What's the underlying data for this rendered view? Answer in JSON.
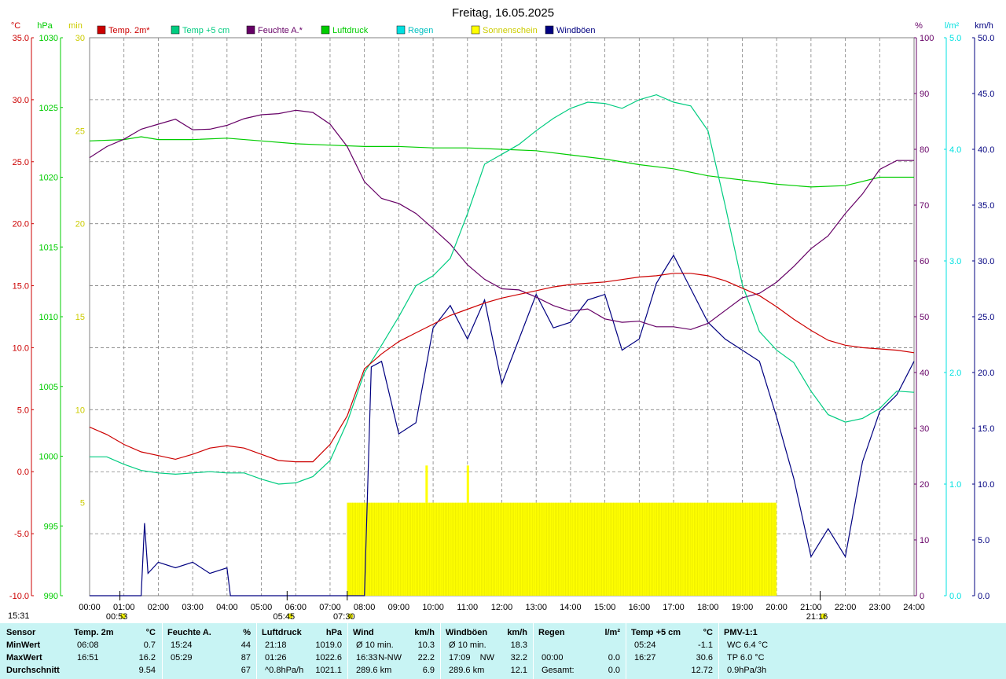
{
  "title": "Freitag, 16.05.2025",
  "colors": {
    "temp2m": "#cc0000",
    "temp5cm": "#00cc80",
    "feuchte": "#660066",
    "luftdruck": "#00cc00",
    "regen": "#00e0e0",
    "sonnenschein": "#ffff00",
    "windboeen": "#000080",
    "grid": "#808080",
    "stats_bg": "#c8f4f4"
  },
  "axis_units": {
    "celsius": "°C",
    "hpa": "hPa",
    "min": "min",
    "percent": "%",
    "lm2": "l/m²",
    "kmh": "km/h"
  },
  "legend": [
    {
      "label": "Temp. 2m*",
      "color": "#cc0000"
    },
    {
      "label": "Temp +5 cm",
      "color": "#00cc80"
    },
    {
      "label": "Feuchte A.*",
      "color": "#660066"
    },
    {
      "label": "Luftdruck",
      "color": "#00cc00"
    },
    {
      "label": "Regen",
      "color": "#00e0e0"
    },
    {
      "label": "Sonnenschein",
      "color": "#ffff00"
    },
    {
      "label": "Windböen",
      "color": "#000080"
    }
  ],
  "chart_data": {
    "type": "line",
    "title": "Freitag, 16.05.2025",
    "x_ticks": [
      "00:00",
      "01:00",
      "02:00",
      "03:00",
      "04:00",
      "05:00",
      "06:00",
      "07:00",
      "08:00",
      "09:00",
      "10:00",
      "11:00",
      "12:00",
      "13:00",
      "14:00",
      "15:00",
      "16:00",
      "17:00",
      "18:00",
      "19:00",
      "20:00",
      "21:00",
      "22:00",
      "23:00",
      "24:00"
    ],
    "axes": {
      "temperature": {
        "unit": "°C",
        "range": [
          -10,
          35
        ],
        "ticks": [
          "35.0",
          "30.0",
          "25.0",
          "20.0",
          "15.0",
          "10.0",
          "5.0",
          "0.0",
          "-5.0",
          "-10.0"
        ]
      },
      "pressure": {
        "unit": "hPa",
        "range": [
          990,
          1030
        ],
        "ticks": [
          "1030",
          "1025",
          "1020",
          "1015",
          "1010",
          "1005",
          "1000",
          "995",
          "990"
        ]
      },
      "sunshine": {
        "unit": "min",
        "range": [
          0,
          30
        ],
        "ticks": [
          "30",
          "25",
          "20",
          "15",
          "10",
          "5"
        ]
      },
      "humidity": {
        "unit": "%",
        "range": [
          0,
          100
        ],
        "ticks": [
          "100",
          "90",
          "80",
          "70",
          "60",
          "50",
          "40",
          "30",
          "20",
          "10",
          "0"
        ]
      },
      "rain": {
        "unit": "l/m²",
        "range": [
          0,
          5
        ],
        "ticks": [
          "5.0",
          "4.0",
          "3.0",
          "2.0",
          "1.0",
          "0.0"
        ]
      },
      "wind": {
        "unit": "km/h",
        "range": [
          0,
          50
        ],
        "ticks": [
          "50.0",
          "45.0",
          "40.0",
          "35.0",
          "30.0",
          "25.0",
          "20.0",
          "15.0",
          "10.0",
          "5.0",
          "0.0"
        ]
      }
    },
    "series": [
      {
        "name": "Temp. 2m*",
        "unit": "°C",
        "x": [
          0,
          0.5,
          1,
          1.5,
          2,
          2.5,
          3,
          3.5,
          4,
          4.5,
          5,
          5.5,
          6,
          6.5,
          7,
          7.5,
          8,
          8.5,
          9,
          9.5,
          10,
          10.5,
          11,
          11.5,
          12,
          12.5,
          13,
          13.5,
          14,
          14.5,
          15,
          15.5,
          16,
          16.5,
          17,
          17.5,
          18,
          18.5,
          19,
          19.5,
          20,
          20.5,
          21,
          21.5,
          22,
          22.5,
          23,
          23.5,
          24
        ],
        "y": [
          3.6,
          3.0,
          2.2,
          1.6,
          1.3,
          1.0,
          1.4,
          1.9,
          2.1,
          1.9,
          1.4,
          0.9,
          0.8,
          0.8,
          2.2,
          4.5,
          8.3,
          9.5,
          10.5,
          11.2,
          11.9,
          12.6,
          13.1,
          13.6,
          14.0,
          14.3,
          14.6,
          14.9,
          15.1,
          15.2,
          15.3,
          15.5,
          15.7,
          15.8,
          16.0,
          16.0,
          15.8,
          15.4,
          14.8,
          14.2,
          13.3,
          12.3,
          11.4,
          10.6,
          10.2,
          10.0,
          9.9,
          9.8,
          9.6
        ]
      },
      {
        "name": "Temp +5 cm",
        "unit": "°C",
        "x": [
          0,
          0.5,
          1,
          1.5,
          2,
          2.5,
          3,
          3.5,
          4,
          4.5,
          5,
          5.5,
          6,
          6.5,
          7,
          7.5,
          8,
          8.5,
          9,
          9.5,
          10,
          10.5,
          11,
          11.5,
          12,
          12.5,
          13,
          13.5,
          14,
          14.5,
          15,
          15.5,
          16,
          16.5,
          17,
          17.5,
          18,
          18.5,
          19,
          19.5,
          20,
          20.5,
          21,
          21.5,
          22,
          22.5,
          23,
          23.5,
          24
        ],
        "y": [
          1.2,
          1.2,
          0.6,
          0.1,
          -0.1,
          -0.2,
          -0.1,
          0.0,
          -0.1,
          -0.1,
          -0.6,
          -1.0,
          -0.9,
          -0.4,
          0.9,
          4.0,
          8.0,
          10.2,
          12.5,
          15.0,
          15.8,
          17.2,
          20.8,
          24.8,
          25.6,
          26.4,
          27.5,
          28.5,
          29.3,
          29.8,
          29.7,
          29.3,
          30.0,
          30.4,
          29.8,
          29.5,
          27.5,
          21.5,
          15.1,
          11.3,
          9.8,
          8.8,
          6.5,
          4.6,
          4.0,
          4.3,
          5.1,
          6.5,
          6.4
        ]
      },
      {
        "name": "Feuchte A.*",
        "unit": "%",
        "x": [
          0,
          0.5,
          1,
          1.5,
          2,
          2.5,
          3,
          3.5,
          4,
          4.5,
          5,
          5.5,
          6,
          6.5,
          7,
          7.5,
          8,
          8.5,
          9,
          9.5,
          10,
          10.5,
          11,
          11.5,
          12,
          12.5,
          13,
          13.5,
          14,
          14.5,
          15,
          15.5,
          16,
          16.5,
          17,
          17.5,
          18,
          18.5,
          19,
          19.5,
          20,
          20.5,
          21,
          21.5,
          22,
          22.5,
          23,
          23.5,
          24
        ],
        "y": [
          78.5,
          80.5,
          81.8,
          83.6,
          84.5,
          85.4,
          83.5,
          83.6,
          84.3,
          85.5,
          86.2,
          86.4,
          87.0,
          86.6,
          84.5,
          80.5,
          74.2,
          71.2,
          70.3,
          68.5,
          65.8,
          63.0,
          59.3,
          56.7,
          55.0,
          54.8,
          53.5,
          52.0,
          51.0,
          51.4,
          49.6,
          49.0,
          49.2,
          48.2,
          48.2,
          47.7,
          48.8,
          51.1,
          53.4,
          54.2,
          56.2,
          59.0,
          62.2,
          64.5,
          68.5,
          72.0,
          76.4,
          78.0,
          78.0
        ]
      },
      {
        "name": "Luftdruck",
        "unit": "hPa",
        "x": [
          0,
          1,
          1.5,
          2,
          3,
          4,
          5,
          6,
          7,
          8,
          9,
          10,
          11,
          12,
          13,
          14,
          15,
          16,
          17,
          18,
          19,
          20,
          21,
          22,
          23,
          24
        ],
        "y": [
          1022.6,
          1022.7,
          1022.9,
          1022.7,
          1022.7,
          1022.8,
          1022.6,
          1022.4,
          1022.3,
          1022.2,
          1022.2,
          1022.1,
          1022.1,
          1022.0,
          1021.9,
          1021.6,
          1021.3,
          1020.9,
          1020.6,
          1020.1,
          1019.8,
          1019.5,
          1019.3,
          1019.4,
          1020.0,
          1020.0
        ]
      },
      {
        "name": "Windböen",
        "unit": "km/h",
        "x": [
          0,
          1.5,
          1.6,
          1.7,
          2,
          2.5,
          3,
          3.5,
          4,
          4.1,
          5,
          6,
          7,
          8,
          8.2,
          8.5,
          9,
          9.5,
          10,
          10.5,
          11,
          11.5,
          12,
          12.5,
          13,
          13.5,
          14,
          14.5,
          15,
          15.5,
          16,
          16.5,
          17,
          17.5,
          18,
          18.5,
          19,
          19.5,
          20,
          20.5,
          21,
          21.5,
          22,
          22.5,
          23,
          23.5,
          24
        ],
        "y": [
          0,
          0,
          6.5,
          2.0,
          3.0,
          2.5,
          3.0,
          2.0,
          2.5,
          0,
          0,
          0,
          0,
          0,
          20.5,
          21.0,
          14.5,
          15.5,
          24.0,
          26.0,
          23.0,
          26.5,
          19.0,
          23.0,
          27.0,
          24.0,
          24.5,
          26.5,
          27.0,
          22.0,
          23.0,
          28.0,
          30.5,
          27.5,
          24.5,
          23.0,
          22.0,
          21.0,
          16.0,
          10.5,
          3.5,
          6.0,
          3.5,
          12.0,
          16.5,
          18.0,
          21.0
        ]
      }
    ],
    "sunshine_bars": {
      "unit": "min",
      "from": 7.5,
      "to": 20.0,
      "value": 5.0,
      "peaks": [
        {
          "x": 9.8,
          "value": 7.0
        },
        {
          "x": 11.0,
          "value": 7.0
        }
      ]
    },
    "markers_bottom": [
      {
        "label": "00:53",
        "x": 0.883
      },
      {
        "label": "05:45",
        "x": 5.75
      },
      {
        "label": "07:30",
        "x": 7.5
      },
      {
        "label": "21:16",
        "x": 21.267
      }
    ],
    "corner_time": "15:31"
  },
  "stats": {
    "row_labels": [
      "Sensor",
      "MinWert",
      "MaxWert",
      "Durchschnitt"
    ],
    "columns": [
      {
        "title": "Temp. 2m",
        "unit": "°C",
        "rows": [
          [
            "06:08",
            "",
            "0.7"
          ],
          [
            "16:51",
            "",
            "16.2"
          ],
          [
            "",
            "",
            "9.54"
          ]
        ]
      },
      {
        "title": "Feuchte A.",
        "unit": "%",
        "rows": [
          [
            "15:24",
            "",
            "44"
          ],
          [
            "05:29",
            "",
            "87"
          ],
          [
            "",
            "",
            "67"
          ]
        ]
      },
      {
        "title": "Luftdruck",
        "unit": "hPa",
        "rows": [
          [
            "21:18",
            "",
            "1019.0"
          ],
          [
            "01:26",
            "",
            "1022.6"
          ],
          [
            "^0.8hPa/h",
            "",
            "1021.1"
          ]
        ]
      },
      {
        "title": "Wind",
        "unit": "km/h",
        "rows": [
          [
            "Ø 10 min.",
            "",
            "10.3"
          ],
          [
            "16:33",
            "N-NW",
            "22.2"
          ],
          [
            "289.6 km",
            "",
            "6.9"
          ]
        ]
      },
      {
        "title": "Windböen",
        "unit": "km/h",
        "rows": [
          [
            "Ø 10 min.",
            "",
            "18.3"
          ],
          [
            "17:09",
            "NW",
            "32.2"
          ],
          [
            "289.6 km",
            "",
            "12.1"
          ]
        ]
      },
      {
        "title": "Regen",
        "unit": "l/m²",
        "rows": [
          [
            "",
            "",
            ""
          ],
          [
            "00:00",
            "",
            "0.0"
          ],
          [
            "Gesamt:",
            "",
            "0.0"
          ]
        ]
      },
      {
        "title": "Temp +5 cm",
        "unit": "°C",
        "rows": [
          [
            "05:24",
            "",
            "-1.1"
          ],
          [
            "16:27",
            "",
            "30.6"
          ],
          [
            "",
            "",
            "12.72"
          ]
        ]
      },
      {
        "title": "PMV-1:1",
        "unit": "",
        "rows": [
          [
            "WC 6.4 °C",
            "",
            ""
          ],
          [
            "TP 6.0 °C",
            "",
            ""
          ],
          [
            "0.9hPa/3h",
            "",
            ""
          ]
        ]
      }
    ]
  }
}
